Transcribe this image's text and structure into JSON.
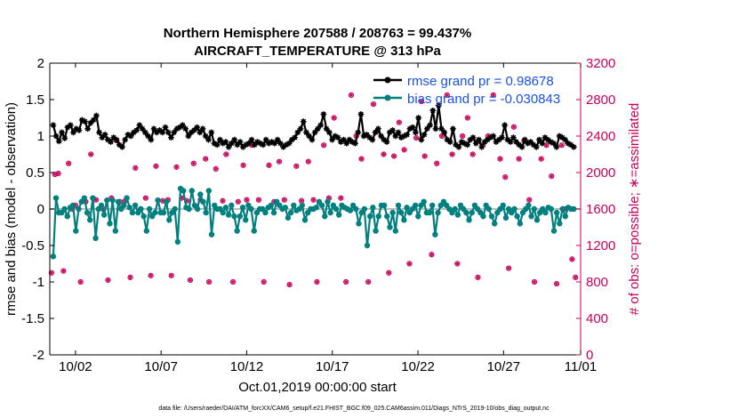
{
  "chart_data": {
    "type": "line",
    "title_line1": "Northern Hemisphere 207588 / 208763 = 99.437%",
    "title_line2": "AIRCRAFT_TEMPERATURE @ 313 hPa",
    "xlabel": "Oct.01,2019 00:00:00 start",
    "ylabel": "rmse and bias (model - observation)",
    "y2label": "# of obs: o=possible; ∗=assimilated",
    "footer": "data file: /Users/raeder/DAI/ATM_forcXX/CAM6_setup/f.e21.FHIST_BGC.f09_025.CAM6assim.011/Diags_NTrS_2019-10/obs_diag_output.nc",
    "xlim": [
      0.5,
      31.5
    ],
    "ylim": [
      -2,
      2
    ],
    "y2lim": [
      0,
      3200
    ],
    "x_tick_values": [
      2,
      7,
      12,
      17,
      22,
      27,
      32
    ],
    "x_tick_labels": [
      "10/02",
      "10/07",
      "10/12",
      "10/17",
      "10/22",
      "10/27",
      "11/01"
    ],
    "y_ticks": [
      -2,
      -1.5,
      -1,
      -0.5,
      0,
      0.5,
      1,
      1.5,
      2
    ],
    "y_tick_labels": [
      "-2",
      "-1.5",
      "-1",
      "-0.5",
      "0",
      "0.5",
      "1",
      "1.5",
      "2"
    ],
    "y2_ticks": [
      0,
      400,
      800,
      1200,
      1600,
      2000,
      2400,
      2800,
      3200
    ],
    "y2_tick_labels": [
      "0",
      "400",
      "800",
      "1200",
      "1600",
      "2000",
      "2400",
      "2800",
      "3200"
    ],
    "legend": [
      {
        "name": "rmse grand pr = 0.98678",
        "color": "#000000",
        "marker": "star"
      },
      {
        "name": "bias grand pr = -0.030843",
        "color": "#00807f",
        "marker": "circle"
      }
    ],
    "colors": {
      "rmse": "#000000",
      "bias": "#00807f",
      "obs": "#c8005a",
      "zero": "#bdbdbd"
    },
    "rmse": [
      1.15,
      1.0,
      0.93,
      1.05,
      0.97,
      1.12,
      1.15,
      1.05,
      1.1,
      1.08,
      1.22,
      1.2,
      1.1,
      1.18,
      1.22,
      1.28,
      1.05,
      0.98,
      1.02,
      0.95,
      0.92,
      0.98,
      0.95,
      0.88,
      0.85,
      0.95,
      1.02,
      1.0,
      1.05,
      1.08,
      1.15,
      1.1,
      1.05,
      1.0,
      0.95,
      1.1,
      1.05,
      1.08,
      1.05,
      1.12,
      1.05,
      0.98,
      1.05,
      1.1,
      1.12,
      1.15,
      1.1,
      1.0,
      1.05,
      1.08,
      1.12,
      1.05,
      1.1,
      1.0,
      0.95,
      1.05,
      0.9,
      0.88,
      0.95,
      0.9,
      0.92,
      0.85,
      0.9,
      0.95,
      0.88,
      0.92,
      0.85,
      0.88,
      0.9,
      0.95,
      0.88,
      0.92,
      0.9,
      0.88,
      0.95,
      0.9,
      0.92,
      0.9,
      0.95,
      0.9,
      0.85,
      0.88,
      0.9,
      0.95,
      0.98,
      1.05,
      1.1,
      1.2,
      1.05,
      1.0,
      0.95,
      1.05,
      1.1,
      1.15,
      1.3,
      1.1,
      1.05,
      0.95,
      1.0,
      0.98,
      0.92,
      0.95,
      0.9,
      0.95,
      0.92,
      0.9,
      1.05,
      1.3,
      1.0,
      1.02,
      0.98,
      0.95,
      1.05,
      1.1,
      1.0,
      0.95,
      0.92,
      1.05,
      1.08,
      1.0,
      1.05,
      0.98,
      1.0,
      1.02,
      1.1,
      1.12,
      1.05,
      1.25,
      0.95,
      1.02,
      1.1,
      1.15,
      1.35,
      1.1,
      1.42,
      1.1,
      1.05,
      0.95,
      0.92,
      1.1,
      0.88,
      0.85,
      0.92,
      0.9,
      0.88,
      0.95,
      0.98,
      0.9,
      0.95,
      0.85,
      0.92,
      0.95,
      0.98,
      1.0,
      0.92,
      0.95,
      0.98,
      1.15,
      0.95,
      0.92,
      0.98,
      0.92,
      0.88,
      0.85,
      0.95,
      0.9,
      0.92,
      0.88,
      0.85,
      0.95,
      0.9,
      0.98,
      0.95,
      0.92,
      0.9,
      0.85,
      1.0,
      0.98,
      0.95,
      0.9,
      0.88,
      0.85
    ],
    "bias": [
      -0.65,
      0.15,
      -0.05,
      -0.05,
      0.0,
      -0.1,
      0.02,
      0.05,
      -0.3,
      0.0,
      0.1,
      0.15,
      -0.05,
      -0.15,
      0.15,
      -0.4,
      0.0,
      0.05,
      -0.08,
      0.12,
      -0.2,
      0.12,
      -0.3,
      0.1,
      0.0,
      0.05,
      0.15,
      0.02,
      -0.05,
      0.05,
      -0.05,
      0.0,
      -0.1,
      -0.3,
      0.0,
      -0.1,
      -0.05,
      0.12,
      -0.05,
      -0.05,
      0.1,
      -0.15,
      -0.05,
      0.0,
      -0.45,
      0.28,
      0.25,
      0.02,
      0.0,
      0.25,
      0.05,
      0.0,
      0.2,
      0.1,
      -0.05,
      0.25,
      -0.35,
      0.05,
      0.0,
      0.0,
      -0.05,
      0.02,
      -0.08,
      0.05,
      -0.1,
      -0.3,
      -0.1,
      0.02,
      -0.15,
      0.05,
      0.0,
      -0.3,
      -0.05,
      0.0,
      0.0,
      -0.05,
      0.02,
      0.05,
      -0.05,
      0.1,
      0.05,
      0.0,
      0.02,
      -0.12,
      -0.05,
      0.05,
      -0.02,
      0.0,
      0.05,
      -0.15,
      -0.05,
      0.0,
      0.0,
      0.02,
      0.1,
      0.05,
      -0.1,
      0.1,
      -0.05,
      0.05,
      0.0,
      -0.08,
      0.05,
      0.02,
      0.0,
      -0.02,
      0.05,
      0.0,
      -0.2,
      -0.05,
      0.0,
      -0.5,
      -0.1,
      0.02,
      -0.3,
      -0.1,
      0.05,
      0.05,
      -0.1,
      -0.25,
      -0.05,
      -0.3,
      0.05,
      -0.05,
      -0.15,
      0.02,
      -0.05,
      0.0,
      0.05,
      -0.1,
      0.05,
      0.1,
      -0.05,
      -0.05,
      0.05,
      -0.35,
      -0.05,
      0.05,
      0.1,
      0.05,
      0.0,
      -0.05,
      0.0,
      -0.08,
      0.05,
      0.0,
      -0.05,
      -0.15,
      -0.05,
      0.05,
      0.0,
      -0.05,
      -0.1,
      0.05,
      0.0,
      -0.1,
      -0.2,
      -0.05,
      0.0,
      0.05,
      -0.12,
      0.0,
      -0.05,
      0.0,
      -0.1,
      -0.2,
      -0.05,
      0.0,
      0.05,
      -0.1,
      0.0,
      -0.15,
      -0.05,
      0.0,
      -0.05,
      0.02,
      0.0,
      -0.3,
      -0.05,
      -0.2,
      0.0,
      -0.1,
      0.02,
      0.0,
      0.0
    ],
    "obs_times": [
      0.6,
      0.8,
      1.0,
      1.3,
      1.6,
      1.8,
      2.0,
      2.3,
      2.6,
      2.9,
      3.2,
      3.6,
      3.9,
      4.1,
      4.4,
      4.6,
      4.9,
      5.2,
      5.5,
      5.8,
      6.1,
      6.4,
      6.7,
      7.1,
      7.4,
      7.6,
      7.9,
      8.2,
      8.5,
      8.7,
      8.9,
      9.3,
      9.6,
      9.8,
      10.2,
      10.6,
      10.8,
      11.2,
      11.5,
      11.8,
      12.0,
      12.3,
      12.7,
      13.0,
      13.3,
      13.6,
      13.9,
      14.2,
      14.5,
      14.9,
      15.2,
      15.6,
      15.9,
      16.1,
      16.5,
      16.8,
      17.1,
      17.5,
      17.8,
      18.1,
      18.4,
      18.7,
      19.1,
      19.4,
      19.6,
      20.0,
      20.3,
      20.6,
      20.9,
      21.2,
      21.5,
      21.9,
      22.2,
      22.4,
      22.8,
      23.1,
      23.4,
      23.7,
      24.0,
      24.3,
      24.6,
      24.9,
      25.2,
      25.5,
      25.8,
      26.1,
      26.4,
      26.8,
      27.1,
      27.3,
      27.6,
      27.9,
      28.2,
      28.5,
      28.8,
      29.2,
      29.5,
      29.8,
      30.1,
      30.4,
      30.6,
      31.0,
      31.2
    ],
    "obs_counts": [
      900,
      1980,
      1990,
      920,
      2100,
      1600,
      1640,
      800,
      1680,
      2200,
      1700,
      1600,
      820,
      1720,
      2350,
      1680,
      1690,
      850,
      2050,
      1600,
      1720,
      870,
      2070,
      1690,
      1700,
      870,
      2060,
      1720,
      1690,
      820,
      2100,
      1700,
      2150,
      800,
      2040,
      1690,
      2200,
      800,
      1680,
      2080,
      1700,
      2300,
      1700,
      800,
      2080,
      1680,
      2120,
      1700,
      770,
      2070,
      1690,
      2120,
      1700,
      800,
      2300,
      1720,
      2600,
      1720,
      800,
      2850,
      2400,
      2150,
      800,
      2750,
      2450,
      2200,
      900,
      2180,
      2550,
      2250,
      1000,
      2380,
      2780,
      2180,
      1100,
      2100,
      2400,
      2850,
      2200,
      1000,
      2400,
      2600,
      2200,
      850,
      2300,
      2400,
      2850,
      2150,
      1950,
      950,
      2500,
      2150,
      2350,
      1700,
      800,
      2150,
      2300,
      1960,
      780,
      2300,
      1600,
      1050,
      850
    ]
  }
}
